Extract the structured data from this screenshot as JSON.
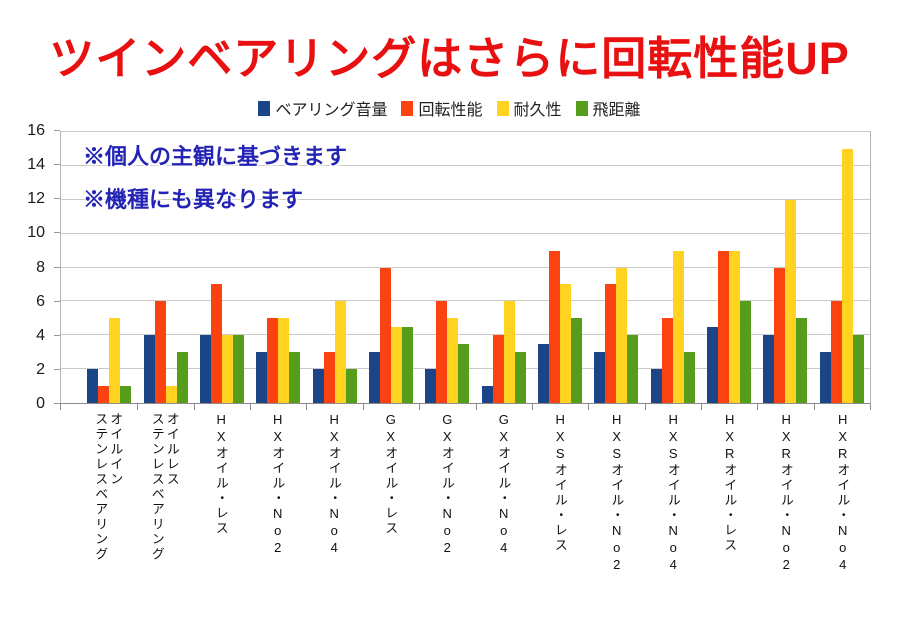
{
  "title": {
    "text": "ツインベアリングはさらに回転性能UP",
    "color": "#e81010"
  },
  "annotations": {
    "line1": "※個人の主観に基づきます",
    "line2": "※機種にも異なります",
    "color": "#2424b4"
  },
  "chart_data": {
    "type": "bar",
    "title": "ツインベアリングはさらに回転性能UP",
    "xlabel": "",
    "ylabel": "",
    "ylim": [
      0,
      16
    ],
    "yticks": [
      0,
      2,
      4,
      6,
      8,
      10,
      12,
      14,
      16
    ],
    "grid": true,
    "legend_position": "top",
    "categories": [
      "オイルイン\nステンレスベアリング",
      "オイルレス\nステンレスベアリング",
      "HXオイル・レス",
      "HXオイル・No2",
      "HXオイル・No4",
      "GXオイル・レス",
      "GXオイル・No2",
      "GXオイル・No4",
      "HXSオイル・レス",
      "HXSオイル・No2",
      "HXSオイル・No4",
      "HXRオイル・レス",
      "HXRオイル・No2",
      "HXRオイル・No4"
    ],
    "series": [
      {
        "name": "ベアリング音量",
        "color": "#1c4587",
        "values": [
          2,
          4,
          4,
          3,
          2,
          3,
          2,
          1,
          3.5,
          3,
          2,
          4.5,
          4,
          3
        ]
      },
      {
        "name": "回転性能",
        "color": "#fb4311",
        "values": [
          1,
          6,
          7,
          5,
          3,
          8,
          6,
          4,
          9,
          7,
          5,
          9,
          8,
          6
        ]
      },
      {
        "name": "耐久性",
        "color": "#ffd320",
        "values": [
          5,
          1,
          4,
          5,
          6,
          4.5,
          5,
          6,
          7,
          8,
          9,
          9,
          12,
          15
        ]
      },
      {
        "name": "飛距離",
        "color": "#579d1c",
        "values": [
          1,
          3,
          4,
          3,
          2,
          4.5,
          3.5,
          3,
          5,
          4,
          3,
          6,
          5,
          4
        ]
      }
    ]
  }
}
